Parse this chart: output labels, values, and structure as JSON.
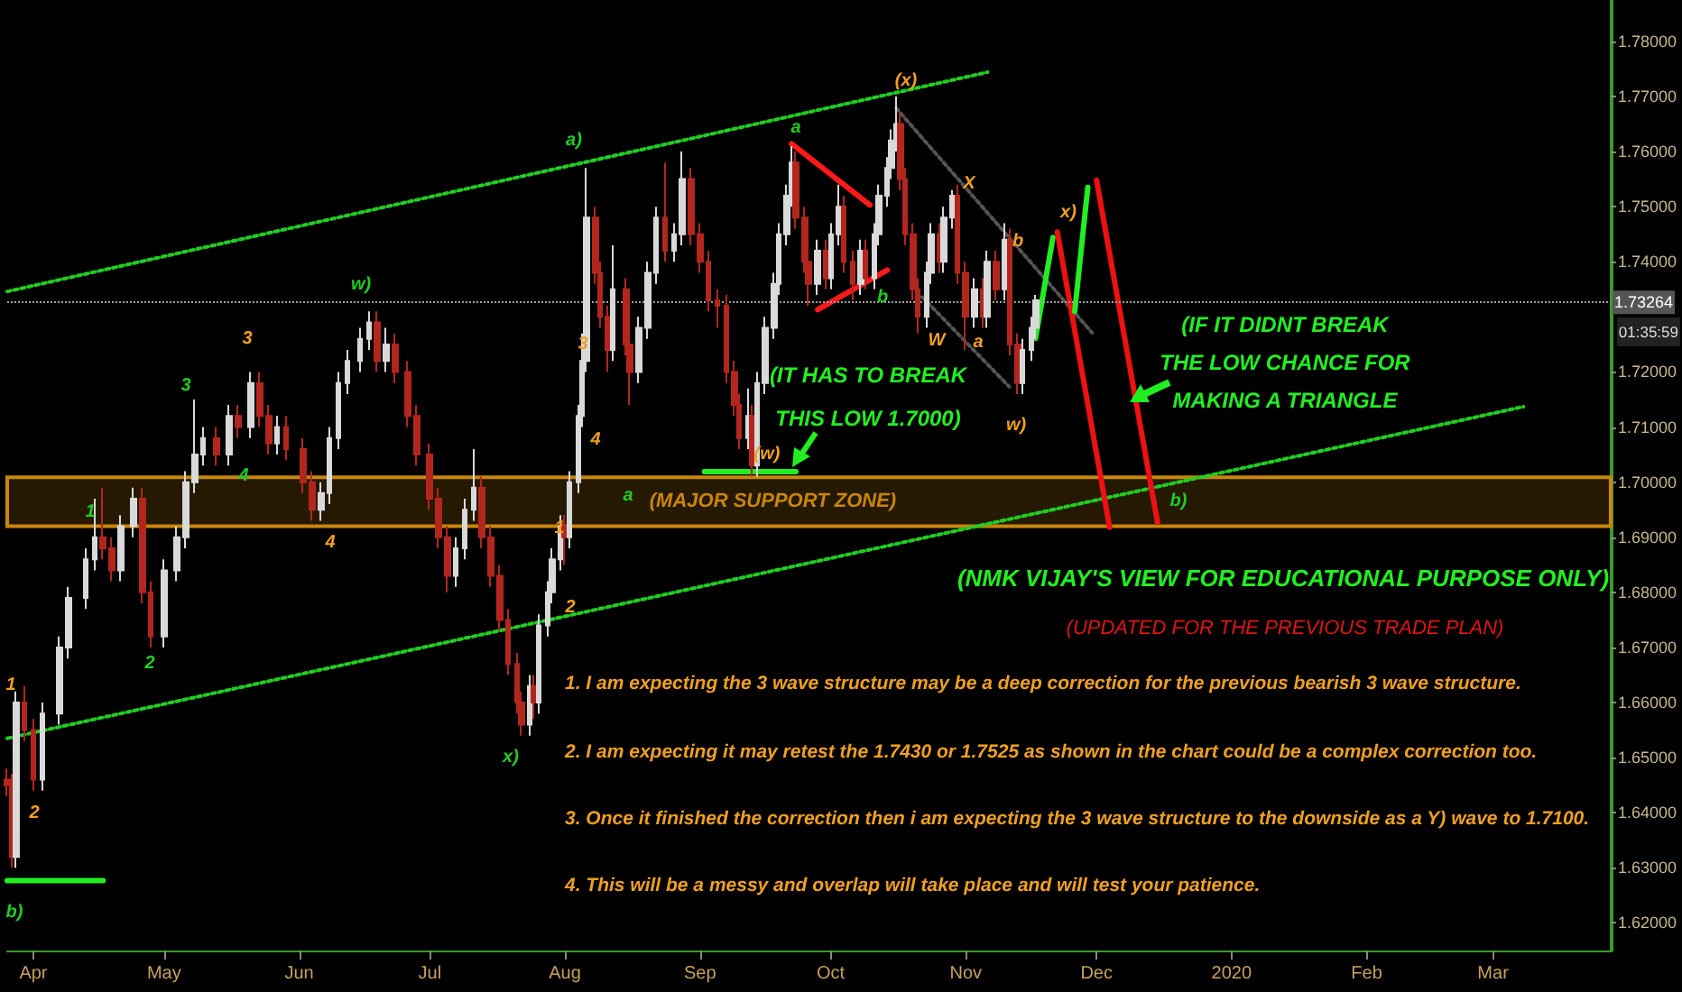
{
  "chart_data": {
    "type": "candlestick",
    "title": "(NMK VIJAY'S VIEW FOR EDUCATIONAL PURPOSE ONLY)",
    "subtitle": "(UPDATED FOR THE PREVIOUS TRADE PLAN)",
    "annotations": [
      "(IT HAS TO BREAK\nTHIS LOW 1.7000)",
      "(IF IT DIDNT BREAK\nTHE LOW CHANCE FOR\nMAKING A TRIANGLE",
      "1. I am expecting the 3 wave structure may be a deep correction for the previous bearish 3 wave structure.",
      "2. I am expecting it may retest the 1.7430 or 1.7525 as shown in the chart could be a complex correction too.",
      "3. Once it finished the correction then i am expecting the 3 wave structure to the downside as a Y) wave to 1.7100.",
      "4. This will be a messy and overlap will take place and will test your patience.",
      "01:35:59",
      "1",
      "3",
      "4",
      "2",
      "w)",
      "a)",
      "a",
      "a",
      "b",
      "x)",
      "b)",
      "b)",
      "1",
      "2",
      "3",
      "4",
      "1",
      "2",
      "3",
      "4",
      "(w)",
      "(x)",
      "X",
      "W",
      "a",
      "b",
      "w)",
      "x)"
    ],
    "xlim": [
      "2019-03-26",
      "2020-03-28"
    ],
    "xticks": [
      {
        "value": "2019-04-01",
        "label": "Apr"
      },
      {
        "value": "2019-05-01",
        "label": "May"
      },
      {
        "value": "2019-06-01",
        "label": "Jun"
      },
      {
        "value": "2019-07-01",
        "label": "Jul"
      },
      {
        "value": "2019-08-01",
        "label": "Aug"
      },
      {
        "value": "2019-09-01",
        "label": "Sep"
      },
      {
        "value": "2019-10-01",
        "label": "Oct"
      },
      {
        "value": "2019-11-01",
        "label": "Nov"
      },
      {
        "value": "2019-12-01",
        "label": "Dec"
      },
      {
        "value": "2020-01-01",
        "label": "2020"
      },
      {
        "value": "2020-02-01",
        "label": "Feb"
      },
      {
        "value": "2020-03-01",
        "label": "Mar"
      }
    ],
    "ylim": [
      1.615,
      1.7875
    ],
    "yticks": [
      {
        "value": 1.62,
        "label": "1.62000"
      },
      {
        "value": 1.63,
        "label": "1.63000"
      },
      {
        "value": 1.64,
        "label": "1.64000"
      },
      {
        "value": 1.65,
        "label": "1.65000"
      },
      {
        "value": 1.66,
        "label": "1.66000"
      },
      {
        "value": 1.67,
        "label": "1.67000"
      },
      {
        "value": 1.68,
        "label": "1.68000"
      },
      {
        "value": 1.69,
        "label": "1.69000"
      },
      {
        "value": 1.7,
        "label": "1.70000"
      },
      {
        "value": 1.71,
        "label": "1.71000"
      },
      {
        "value": 1.72,
        "label": "1.72000"
      },
      {
        "value": 1.74,
        "label": "1.74000"
      },
      {
        "value": 1.75,
        "label": "1.75000"
      },
      {
        "value": 1.76,
        "label": "1.76000"
      },
      {
        "value": 1.77,
        "label": "1.77000"
      },
      {
        "value": 1.78,
        "label": "1.78000"
      }
    ],
    "ref_lines": [
      {
        "axis": "y",
        "value": 1.73264,
        "label": "1.73264",
        "color": "#a0a0a0",
        "line_style": "dotted"
      }
    ],
    "bands": [
      {
        "axis": "y",
        "from": 1.692,
        "to": 1.7009,
        "label": "(MAJOR SUPPORT ZONE)",
        "color": "#c8860a"
      }
    ],
    "series": [
      {
        "colors": [
          "#b3261e",
          "#b3261e",
          "#d9d9d9",
          "#b3261e",
          "#b3261e",
          "#d9d9d9",
          "#d9d9d9",
          "#d9d9d9",
          "#d9d9d9",
          "#d9d9d9",
          "#b3261e",
          "#b3261e",
          "#d9d9d9",
          "#d9d9d9",
          "#b3261e",
          "#b3261e",
          "#d9d9d9",
          "#d9d9d9",
          "#d9d9d9",
          "#d9d9d9",
          "#d9d9d9",
          "#b3261e",
          "#d9d9d9",
          "#b3261e",
          "#d9d9d9",
          "#b3261e",
          "#b3261e",
          "#d9d9d9",
          "#b3261e",
          "#b3261e",
          "#b3261e",
          "#d9d9d9",
          "#d9d9d9",
          "#d9d9d9",
          "#d9d9d9",
          "#d9d9d9",
          "#d9d9d9",
          "#b3261e",
          "#d9d9d9",
          "#b3261e",
          "#b3261e",
          "#b3261e",
          "#b3261e",
          "#b3261e",
          "#b3261e",
          "#d9d9d9",
          "#d9d9d9",
          "#d9d9d9",
          "#b3261e",
          "#b3261e",
          "#b3261e",
          "#b3261e",
          "#b3261e",
          "#b3261e",
          "#d9d9d9",
          "#b3261e",
          "#d9d9d9",
          "#d9d9d9",
          "#d9d9d9",
          "#d9d9d9",
          "#b3261e",
          "#d9d9d9",
          "#d9d9d9",
          "#d9d9d9",
          "#d9d9d9",
          "#b3261e",
          "#b3261e",
          "#b3261e",
          "#d9d9d9",
          "#b3261e",
          "#b3261e",
          "#d9d9d9",
          "#d9d9d9",
          "#d9d9d9",
          "#b3261e",
          "#d9d9d9",
          "#d9d9d9",
          "#b3261e",
          "#b3261e",
          "#b3261e",
          "#b3261e",
          "#b3261e",
          "#b3261e",
          "#b3261e",
          "#d9d9d9",
          "#b3261e",
          "#d9d9d9",
          "#d9d9d9",
          "#d9d9d9",
          "#d9d9d9",
          "#d9d9d9",
          "#d9d9d9",
          "#b3261e",
          "#b3261e",
          "#b3261e",
          "#d9d9d9",
          "#b3261e",
          "#d9d9d9",
          "#d9d9d9",
          "#b3261e",
          "#b3261e",
          "#d9d9d9",
          "#b3261e",
          "#d9d9d9",
          "#d9d9d9",
          "#d9d9d9",
          "#d9d9d9",
          "#d9d9d9",
          "#b3261e",
          "#b3261e",
          "#b3261e",
          "#b3261e",
          "#d9d9d9",
          "#d9d9d9",
          "#b3261e",
          "#d9d9d9",
          "#d9d9d9",
          "#b3261e",
          "#b3261e",
          "#d9d9d9",
          "#b3261e",
          "#d9d9d9",
          "#b3261e",
          "#d9d9d9",
          "#b3261e",
          "#b3261e",
          "#d9d9d9",
          "#d9d9d9",
          "#d9d9d9"
        ],
        "x": [
          "2019-03-26",
          "2019-03-27",
          "2019-03-28",
          "2019-03-30",
          "2019-04-01",
          "2019-04-03",
          "2019-04-07",
          "2019-04-09",
          "2019-04-13",
          "2019-04-15",
          "2019-04-17",
          "2019-04-19",
          "2019-04-21",
          "2019-04-24",
          "2019-04-26",
          "2019-04-28",
          "2019-05-01",
          "2019-05-04",
          "2019-05-06",
          "2019-05-08",
          "2019-05-10",
          "2019-05-13",
          "2019-05-16",
          "2019-05-18",
          "2019-05-21",
          "2019-05-23",
          "2019-05-25",
          "2019-05-27",
          "2019-05-29",
          "2019-06-02",
          "2019-06-04",
          "2019-06-06",
          "2019-06-08",
          "2019-06-10",
          "2019-06-12",
          "2019-06-15",
          "2019-06-17",
          "2019-06-19",
          "2019-06-21",
          "2019-06-23",
          "2019-06-26",
          "2019-06-28",
          "2019-07-01",
          "2019-07-03",
          "2019-07-05",
          "2019-07-07",
          "2019-07-09",
          "2019-07-11",
          "2019-07-13",
          "2019-07-15",
          "2019-07-17",
          "2019-07-19",
          "2019-07-21",
          "2019-07-22",
          "2019-07-24",
          "2019-07-25",
          "2019-07-26",
          "2019-07-28",
          "2019-07-29",
          "2019-07-31",
          "2019-08-01",
          "2019-08-02",
          "2019-08-04",
          "2019-08-05",
          "2019-08-06",
          "2019-08-08",
          "2019-08-09",
          "2019-08-11",
          "2019-08-12",
          "2019-08-15",
          "2019-08-16",
          "2019-08-18",
          "2019-08-20",
          "2019-08-22",
          "2019-08-24",
          "2019-08-26",
          "2019-08-28",
          "2019-08-30",
          "2019-09-01",
          "2019-09-03",
          "2019-09-05",
          "2019-09-07",
          "2019-09-09",
          "2019-09-10",
          "2019-09-12",
          "2019-09-13",
          "2019-09-14",
          "2019-09-16",
          "2019-09-18",
          "2019-09-19",
          "2019-09-21",
          "2019-09-22",
          "2019-09-23",
          "2019-09-25",
          "2019-09-26",
          "2019-09-28",
          "2019-09-30",
          "2019-10-01",
          "2019-10-03",
          "2019-10-04",
          "2019-10-06",
          "2019-10-08",
          "2019-10-09",
          "2019-10-11",
          "2019-10-12",
          "2019-10-14",
          "2019-10-15",
          "2019-10-16",
          "2019-10-17",
          "2019-10-18",
          "2019-10-20",
          "2019-10-21",
          "2019-10-23",
          "2019-10-24",
          "2019-10-26",
          "2019-10-27",
          "2019-10-29",
          "2019-10-30",
          "2019-11-01",
          "2019-11-03",
          "2019-11-05",
          "2019-11-06",
          "2019-11-08",
          "2019-11-10",
          "2019-11-11",
          "2019-11-13",
          "2019-11-14",
          "2019-11-16",
          "2019-11-17"
        ],
        "ohlc": [
          [
            1.646,
            1.648,
            1.643,
            1.645
          ],
          [
            1.645,
            1.647,
            1.63,
            1.632
          ],
          [
            1.632,
            1.662,
            1.63,
            1.66
          ],
          [
            1.66,
            1.663,
            1.653,
            1.655
          ],
          [
            1.655,
            1.657,
            1.644,
            1.646
          ],
          [
            1.646,
            1.66,
            1.644,
            1.658
          ],
          [
            1.658,
            1.672,
            1.656,
            1.67
          ],
          [
            1.67,
            1.681,
            1.668,
            1.679
          ],
          [
            1.679,
            1.688,
            1.677,
            1.686
          ],
          [
            1.686,
            1.697,
            1.684,
            1.69
          ],
          [
            1.69,
            1.699,
            1.686,
            1.688
          ],
          [
            1.688,
            1.69,
            1.682,
            1.684
          ],
          [
            1.684,
            1.694,
            1.682,
            1.692
          ],
          [
            1.692,
            1.699,
            1.69,
            1.697
          ],
          [
            1.697,
            1.699,
            1.678,
            1.68
          ],
          [
            1.68,
            1.682,
            1.67,
            1.672
          ],
          [
            1.672,
            1.686,
            1.67,
            1.684
          ],
          [
            1.684,
            1.692,
            1.682,
            1.69
          ],
          [
            1.69,
            1.702,
            1.688,
            1.7
          ],
          [
            1.7,
            1.715,
            1.698,
            1.705
          ],
          [
            1.705,
            1.71,
            1.703,
            1.708
          ],
          [
            1.708,
            1.71,
            1.703,
            1.705
          ],
          [
            1.705,
            1.714,
            1.703,
            1.712
          ],
          [
            1.712,
            1.714,
            1.708,
            1.71
          ],
          [
            1.71,
            1.72,
            1.708,
            1.718
          ],
          [
            1.718,
            1.72,
            1.71,
            1.712
          ],
          [
            1.712,
            1.714,
            1.705,
            1.707
          ],
          [
            1.707,
            1.712,
            1.705,
            1.71
          ],
          [
            1.71,
            1.712,
            1.704,
            1.706
          ],
          [
            1.706,
            1.708,
            1.698,
            1.7
          ],
          [
            1.7,
            1.702,
            1.693,
            1.695
          ],
          [
            1.695,
            1.7,
            1.693,
            1.698
          ],
          [
            1.698,
            1.71,
            1.696,
            1.708
          ],
          [
            1.708,
            1.72,
            1.706,
            1.718
          ],
          [
            1.718,
            1.724,
            1.716,
            1.722
          ],
          [
            1.722,
            1.728,
            1.72,
            1.726
          ],
          [
            1.726,
            1.731,
            1.724,
            1.729
          ],
          [
            1.729,
            1.731,
            1.72,
            1.722
          ],
          [
            1.722,
            1.728,
            1.72,
            1.725
          ],
          [
            1.725,
            1.727,
            1.718,
            1.72
          ],
          [
            1.72,
            1.722,
            1.71,
            1.712
          ],
          [
            1.712,
            1.714,
            1.703,
            1.705
          ],
          [
            1.705,
            1.707,
            1.695,
            1.697
          ],
          [
            1.697,
            1.699,
            1.688,
            1.69
          ],
          [
            1.69,
            1.692,
            1.68,
            1.683
          ],
          [
            1.683,
            1.69,
            1.681,
            1.688
          ],
          [
            1.688,
            1.697,
            1.686,
            1.695
          ],
          [
            1.695,
            1.706,
            1.693,
            1.699
          ],
          [
            1.699,
            1.701,
            1.688,
            1.69
          ],
          [
            1.69,
            1.692,
            1.681,
            1.683
          ],
          [
            1.683,
            1.685,
            1.673,
            1.675
          ],
          [
            1.675,
            1.677,
            1.665,
            1.667
          ],
          [
            1.667,
            1.669,
            1.658,
            1.66
          ],
          [
            1.66,
            1.662,
            1.654,
            1.656
          ],
          [
            1.656,
            1.665,
            1.654,
            1.663
          ],
          [
            1.663,
            1.665,
            1.657,
            1.66
          ],
          [
            1.66,
            1.676,
            1.658,
            1.674
          ],
          [
            1.674,
            1.682,
            1.672,
            1.68
          ],
          [
            1.68,
            1.688,
            1.678,
            1.686
          ],
          [
            1.686,
            1.694,
            1.684,
            1.692
          ],
          [
            1.692,
            1.694,
            1.685,
            1.69
          ],
          [
            1.69,
            1.702,
            1.688,
            1.7
          ],
          [
            1.7,
            1.714,
            1.698,
            1.712
          ],
          [
            1.712,
            1.727,
            1.71,
            1.722
          ],
          [
            1.722,
            1.757,
            1.72,
            1.748
          ],
          [
            1.748,
            1.75,
            1.736,
            1.738
          ],
          [
            1.738,
            1.74,
            1.728,
            1.73
          ],
          [
            1.73,
            1.732,
            1.72,
            1.724
          ],
          [
            1.724,
            1.743,
            1.722,
            1.735
          ],
          [
            1.735,
            1.737,
            1.723,
            1.725
          ],
          [
            1.725,
            1.727,
            1.714,
            1.72
          ],
          [
            1.72,
            1.73,
            1.718,
            1.728
          ],
          [
            1.728,
            1.74,
            1.726,
            1.738
          ],
          [
            1.738,
            1.75,
            1.736,
            1.748
          ],
          [
            1.748,
            1.758,
            1.74,
            1.742
          ],
          [
            1.742,
            1.747,
            1.74,
            1.745
          ],
          [
            1.745,
            1.76,
            1.743,
            1.755
          ],
          [
            1.755,
            1.757,
            1.743,
            1.745
          ],
          [
            1.745,
            1.747,
            1.738,
            1.74
          ],
          [
            1.74,
            1.742,
            1.731,
            1.733
          ],
          [
            1.733,
            1.735,
            1.728,
            1.732
          ],
          [
            1.732,
            1.734,
            1.718,
            1.72
          ],
          [
            1.72,
            1.722,
            1.712,
            1.714
          ],
          [
            1.714,
            1.716,
            1.706,
            1.708
          ],
          [
            1.708,
            1.717,
            1.706,
            1.712
          ],
          [
            1.712,
            1.714,
            1.701,
            1.703
          ],
          [
            1.703,
            1.72,
            1.701,
            1.718
          ],
          [
            1.718,
            1.73,
            1.716,
            1.728
          ],
          [
            1.728,
            1.738,
            1.726,
            1.736
          ],
          [
            1.736,
            1.747,
            1.734,
            1.745
          ],
          [
            1.745,
            1.754,
            1.743,
            1.752
          ],
          [
            1.752,
            1.761,
            1.75,
            1.758
          ],
          [
            1.758,
            1.76,
            1.746,
            1.748
          ],
          [
            1.748,
            1.75,
            1.738,
            1.74
          ],
          [
            1.74,
            1.742,
            1.732,
            1.736
          ],
          [
            1.736,
            1.744,
            1.734,
            1.742
          ],
          [
            1.742,
            1.744,
            1.735,
            1.737
          ],
          [
            1.737,
            1.747,
            1.735,
            1.745
          ],
          [
            1.745,
            1.754,
            1.743,
            1.75
          ],
          [
            1.75,
            1.752,
            1.738,
            1.74
          ],
          [
            1.74,
            1.742,
            1.733,
            1.736
          ],
          [
            1.736,
            1.744,
            1.734,
            1.742
          ],
          [
            1.742,
            1.744,
            1.735,
            1.737
          ],
          [
            1.737,
            1.747,
            1.735,
            1.745
          ],
          [
            1.745,
            1.754,
            1.743,
            1.752
          ],
          [
            1.752,
            1.759,
            1.75,
            1.757
          ],
          [
            1.757,
            1.764,
            1.755,
            1.762
          ],
          [
            1.762,
            1.77,
            1.76,
            1.765
          ],
          [
            1.765,
            1.767,
            1.753,
            1.755
          ],
          [
            1.755,
            1.757,
            1.743,
            1.745
          ],
          [
            1.745,
            1.747,
            1.733,
            1.735
          ],
          [
            1.735,
            1.737,
            1.727,
            1.73
          ],
          [
            1.73,
            1.74,
            1.728,
            1.738
          ],
          [
            1.738,
            1.747,
            1.736,
            1.745
          ],
          [
            1.745,
            1.747,
            1.738,
            1.74
          ],
          [
            1.74,
            1.75,
            1.738,
            1.748
          ],
          [
            1.748,
            1.753,
            1.746,
            1.752
          ],
          [
            1.752,
            1.754,
            1.736,
            1.738
          ],
          [
            1.738,
            1.74,
            1.724,
            1.73
          ],
          [
            1.73,
            1.737,
            1.728,
            1.735
          ],
          [
            1.735,
            1.737,
            1.728,
            1.73
          ],
          [
            1.73,
            1.742,
            1.728,
            1.74
          ],
          [
            1.74,
            1.742,
            1.733,
            1.735
          ],
          [
            1.735,
            1.747,
            1.733,
            1.744
          ],
          [
            1.744,
            1.746,
            1.723,
            1.725
          ],
          [
            1.725,
            1.727,
            1.716,
            1.718
          ],
          [
            1.718,
            1.726,
            1.716,
            1.724
          ],
          [
            1.724,
            1.73,
            1.722,
            1.728
          ],
          [
            1.728,
            1.734,
            1.726,
            1.733
          ]
        ]
      },
      {
        "type": "line",
        "color": "#22cc22",
        "line_style": "dotted",
        "x": [
          "2019-03-26",
          "2019-11-06"
        ],
        "values": [
          1.7346,
          1.7744
        ]
      },
      {
        "type": "line",
        "color": "#22cc22",
        "line_style": "dotted",
        "x": [
          "2019-03-26",
          "2020-03-08"
        ],
        "values": [
          1.6535,
          1.7137
        ]
      },
      {
        "type": "line",
        "color": "#555555",
        "line_style": "dotted",
        "x": [
          "2019-10-16",
          "2019-11-30"
        ],
        "values": [
          1.7679,
          1.7271
        ]
      },
      {
        "type": "line",
        "color": "#555555",
        "line_style": "dotted",
        "x": [
          "2019-10-22",
          "2019-11-11"
        ],
        "values": [
          1.7336,
          1.7173
        ]
      },
      {
        "type": "line",
        "color": "#ff1a1a",
        "line_style": "solid",
        "x": [
          "2019-09-22",
          "2019-10-10"
        ],
        "values": [
          1.7614,
          1.7503
        ]
      },
      {
        "type": "line",
        "color": "#ff1a1a",
        "line_style": "solid",
        "x": [
          "2019-09-28",
          "2019-10-14"
        ],
        "values": [
          1.7313,
          1.7385
        ]
      },
      {
        "type": "line",
        "color": "#22ee22",
        "line_style": "solid",
        "x": [
          "2019-09-02",
          "2019-09-23"
        ],
        "values": [
          1.7019,
          1.7019
        ]
      },
      {
        "type": "line",
        "color": "#22ee22",
        "line_style": "solid",
        "x": [
          "2019-03-26",
          "2019-04-17"
        ],
        "values": [
          1.6277,
          1.6277
        ]
      },
      {
        "type": "line",
        "color": "#22ee22",
        "line_style": "solid",
        "x": [
          "2019-11-17",
          "2019-11-21"
        ],
        "values": [
          1.7261,
          1.7444
        ]
      },
      {
        "type": "line",
        "color": "#ee1111",
        "line_style": "solid",
        "x": [
          "2019-11-22",
          "2019-12-04"
        ],
        "values": [
          1.7454,
          1.6918
        ]
      },
      {
        "type": "line",
        "color": "#22ee22",
        "line_style": "solid",
        "x": [
          "2019-11-26",
          "2019-11-29"
        ],
        "values": [
          1.731,
          1.7535
        ]
      },
      {
        "type": "line",
        "color": "#ee1111",
        "line_style": "solid",
        "x": [
          "2019-12-01",
          "2019-12-15"
        ],
        "values": [
          1.7548,
          1.6927
        ]
      }
    ]
  }
}
